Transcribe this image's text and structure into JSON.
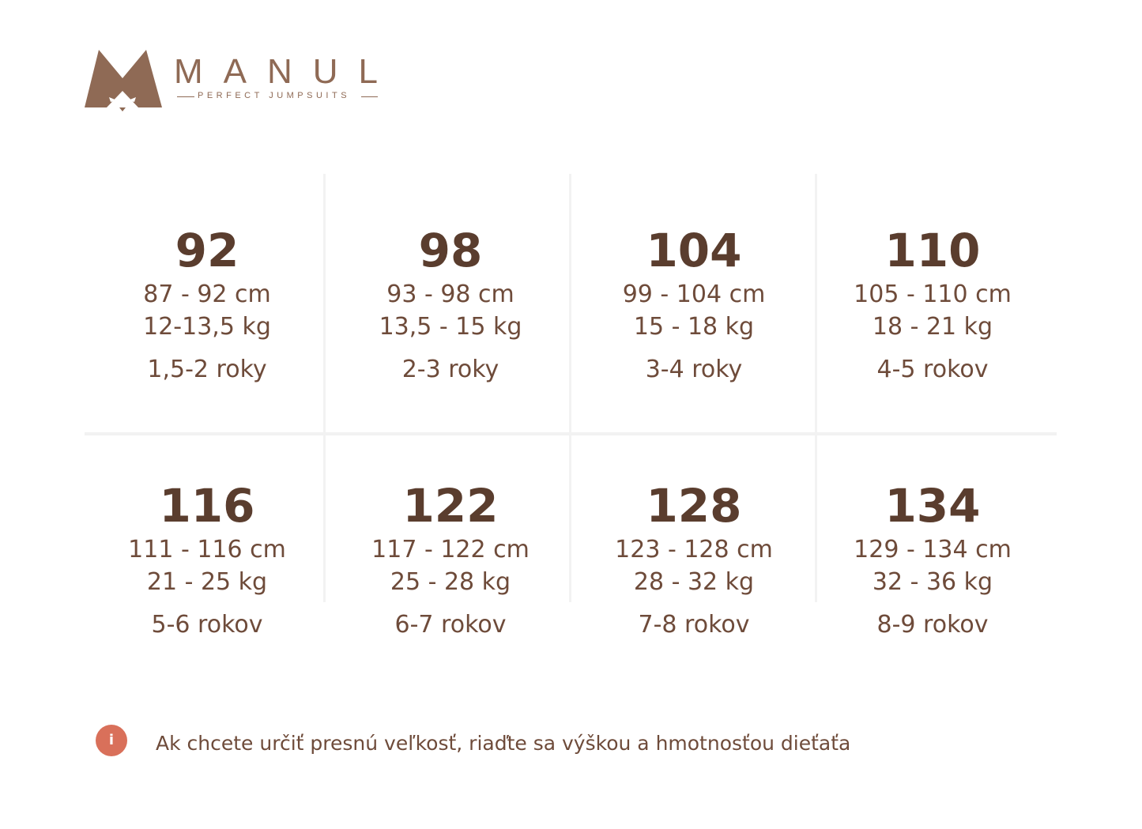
{
  "header": {
    "brand": "MANUL",
    "tagline": "PERFECT JUMPSUITS"
  },
  "sizes": [
    {
      "size": "92",
      "height": "87 - 92 cm",
      "weight": "12-13,5 kg",
      "age": "1,5-2 roky"
    },
    {
      "size": "98",
      "height": "93 - 98 cm",
      "weight": "13,5 - 15 kg",
      "age": "2-3 roky"
    },
    {
      "size": "104",
      "height": "99 - 104 cm",
      "weight": "15 - 18 kg",
      "age": "3-4 roky"
    },
    {
      "size": "110",
      "height": "105 - 110 cm",
      "weight": "18 - 21 kg",
      "age": "4-5 rokov"
    },
    {
      "size": "116",
      "height": "111 - 116 cm",
      "weight": "21 - 25 kg",
      "age": "5-6 rokov"
    },
    {
      "size": "122",
      "height": "117 - 122 cm",
      "weight": "25 - 28 kg",
      "age": "6-7 rokov"
    },
    {
      "size": "128",
      "height": "123 - 128 cm",
      "weight": "28 - 32 kg",
      "age": "7-8 rokov"
    },
    {
      "size": "134",
      "height": "129 - 134 cm",
      "weight": "32 - 36 kg",
      "age": "8-9 rokov"
    }
  ],
  "note": {
    "icon": "i",
    "text": "Ak chcete určiť presnú veľkosť, riaďte sa výškou a hmotnosťou dieťaťa"
  }
}
